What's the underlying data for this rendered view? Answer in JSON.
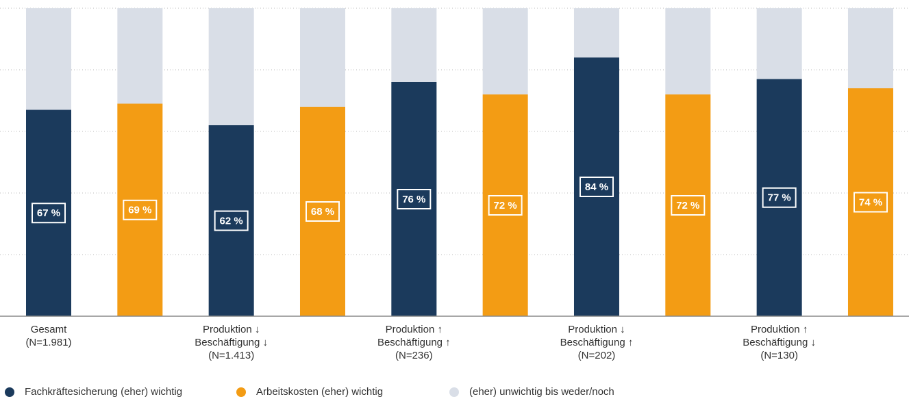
{
  "chart_data": {
    "type": "grouped-stacked-bar",
    "categories": [
      [
        "Gesamt",
        "(N=1.981)"
      ],
      [
        "Produktion ↓",
        "Beschäftigung ↓",
        "(N=1.413)"
      ],
      [
        "Produktion ↑",
        "Beschäftigung ↑",
        "(N=236)"
      ],
      [
        "Produktion ↓",
        "Beschäftigung ↑",
        "(N=202)"
      ],
      [
        "Produktion ↑",
        "Beschäftigung ↓",
        "(N=130)"
      ]
    ],
    "series": [
      {
        "name": "Fachkräftesicherung (eher) wichtig",
        "color": "#1b3a5c",
        "values": [
          67,
          62,
          76,
          84,
          77
        ],
        "value_labels": [
          "67 %",
          "62 %",
          "76 %",
          "84 %",
          "77 %"
        ]
      },
      {
        "name": "Arbeitskosten (eher) wichtig",
        "color": "#f39c14",
        "values": [
          69,
          68,
          72,
          72,
          74
        ],
        "value_labels": [
          "69 %",
          "68 %",
          "72 %",
          "72 %",
          "74 %"
        ]
      },
      {
        "name": "(eher) unwichtig bis weder/noch",
        "color": "#d9dee7",
        "values": [
          [
            33,
            31
          ],
          [
            38,
            32
          ],
          [
            24,
            28
          ],
          [
            16,
            28
          ],
          [
            23,
            26
          ]
        ]
      }
    ],
    "ylim": [
      0,
      100
    ],
    "yticks": [
      20,
      40,
      60,
      80,
      100
    ],
    "grid": true
  }
}
